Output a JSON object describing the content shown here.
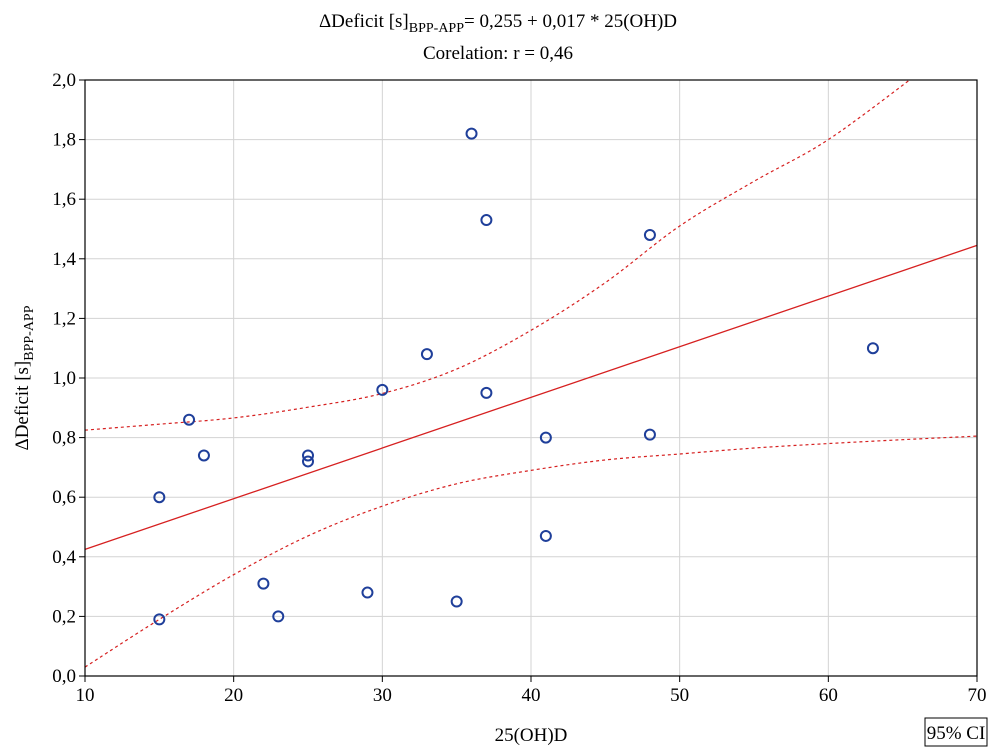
{
  "chart_data": {
    "type": "scatter",
    "title_lines": [
      {
        "prefix": "ΔDeficit [s]",
        "subscript": "BPP-APP",
        "suffix": "= 0,255 + 0,017 * 25(OH)D"
      },
      {
        "text": "Corelation: r = 0,46"
      }
    ],
    "xlabel": "25(OH)D",
    "ylabel": {
      "prefix": "ΔDeficit [s]",
      "subscript": "BPP-APP"
    },
    "xlim": [
      10,
      70
    ],
    "ylim": [
      0,
      2.0
    ],
    "x_ticks": [
      {
        "value": 10,
        "label": "10"
      },
      {
        "value": 20,
        "label": "20"
      },
      {
        "value": 30,
        "label": "30"
      },
      {
        "value": 40,
        "label": "40"
      },
      {
        "value": 50,
        "label": "50"
      },
      {
        "value": 60,
        "label": "60"
      },
      {
        "value": 70,
        "label": "70"
      }
    ],
    "y_ticks": [
      {
        "value": 0.0,
        "label": "0,0"
      },
      {
        "value": 0.2,
        "label": "0,2"
      },
      {
        "value": 0.4,
        "label": "0,4"
      },
      {
        "value": 0.6,
        "label": "0,6"
      },
      {
        "value": 0.8,
        "label": "0,8"
      },
      {
        "value": 1.0,
        "label": "1,0"
      },
      {
        "value": 1.2,
        "label": "1,2"
      },
      {
        "value": 1.4,
        "label": "1,4"
      },
      {
        "value": 1.6,
        "label": "1,6"
      },
      {
        "value": 1.8,
        "label": "1,8"
      },
      {
        "value": 2.0,
        "label": "2,0"
      }
    ],
    "grid": true,
    "points": [
      {
        "x": 15,
        "y": 0.6
      },
      {
        "x": 15,
        "y": 0.19
      },
      {
        "x": 17,
        "y": 0.86
      },
      {
        "x": 18,
        "y": 0.74
      },
      {
        "x": 22,
        "y": 0.31
      },
      {
        "x": 23,
        "y": 0.2
      },
      {
        "x": 25,
        "y": 0.74
      },
      {
        "x": 25,
        "y": 0.72
      },
      {
        "x": 29,
        "y": 0.28
      },
      {
        "x": 30,
        "y": 0.96
      },
      {
        "x": 33,
        "y": 1.08
      },
      {
        "x": 35,
        "y": 0.25
      },
      {
        "x": 36,
        "y": 1.82
      },
      {
        "x": 37,
        "y": 1.53
      },
      {
        "x": 37,
        "y": 0.95
      },
      {
        "x": 41,
        "y": 0.8
      },
      {
        "x": 41,
        "y": 0.47
      },
      {
        "x": 48,
        "y": 1.48
      },
      {
        "x": 48,
        "y": 0.81
      },
      {
        "x": 63,
        "y": 1.1
      }
    ],
    "regression": {
      "intercept": 0.255,
      "slope": 0.017
    },
    "ci_upper": [
      {
        "x": 10,
        "y": 0.825
      },
      {
        "x": 15,
        "y": 0.845
      },
      {
        "x": 20,
        "y": 0.866
      },
      {
        "x": 25,
        "y": 0.902
      },
      {
        "x": 30,
        "y": 0.948
      },
      {
        "x": 35,
        "y": 1.03
      },
      {
        "x": 40,
        "y": 1.16
      },
      {
        "x": 45,
        "y": 1.32
      },
      {
        "x": 50,
        "y": 1.51
      },
      {
        "x": 55,
        "y": 1.66
      },
      {
        "x": 60,
        "y": 1.8
      },
      {
        "x": 66,
        "y": 2.02
      }
    ],
    "ci_lower": [
      {
        "x": 10,
        "y": 0.03
      },
      {
        "x": 15,
        "y": 0.19
      },
      {
        "x": 20,
        "y": 0.34
      },
      {
        "x": 25,
        "y": 0.47
      },
      {
        "x": 30,
        "y": 0.57
      },
      {
        "x": 35,
        "y": 0.645
      },
      {
        "x": 40,
        "y": 0.69
      },
      {
        "x": 45,
        "y": 0.725
      },
      {
        "x": 50,
        "y": 0.745
      },
      {
        "x": 55,
        "y": 0.765
      },
      {
        "x": 60,
        "y": 0.78
      },
      {
        "x": 65,
        "y": 0.793
      },
      {
        "x": 70,
        "y": 0.805
      }
    ],
    "legend": {
      "label": "95% CI",
      "placement": "bottom-right"
    },
    "colors": {
      "points": "#1f3f9a",
      "regression": "#d62020",
      "ci": "#d62020",
      "grid": "#d3d3d3",
      "axis": "#000000"
    }
  }
}
